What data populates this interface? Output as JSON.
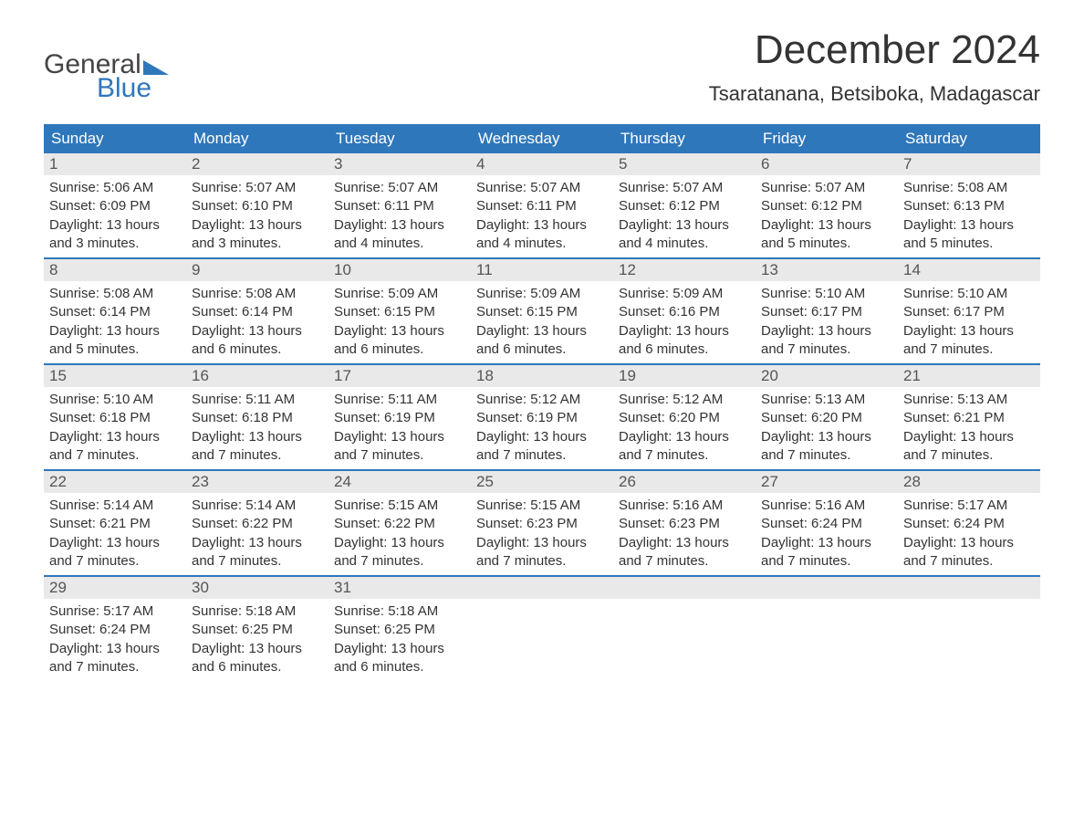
{
  "logo": {
    "top": "General",
    "bottom": "Blue",
    "accent_color": "#2f77bb"
  },
  "title": "December 2024",
  "location": "Tsaratanana, Betsiboka, Madagascar",
  "colors": {
    "header_bg": "#2f77bb",
    "header_text": "#ffffff",
    "strip_bg": "#e9e9e9",
    "text": "#333333",
    "week_divider": "#2f77bb",
    "page_bg": "#ffffff"
  },
  "typography": {
    "title_fontsize": 44,
    "location_fontsize": 22,
    "dayheader_fontsize": 17,
    "daynum_fontsize": 17,
    "body_fontsize": 15
  },
  "day_headers": [
    "Sunday",
    "Monday",
    "Tuesday",
    "Wednesday",
    "Thursday",
    "Friday",
    "Saturday"
  ],
  "weeks": [
    [
      {
        "n": "1",
        "sunrise": "Sunrise: 5:06 AM",
        "sunset": "Sunset: 6:09 PM",
        "day1": "Daylight: 13 hours",
        "day2": "and 3 minutes."
      },
      {
        "n": "2",
        "sunrise": "Sunrise: 5:07 AM",
        "sunset": "Sunset: 6:10 PM",
        "day1": "Daylight: 13 hours",
        "day2": "and 3 minutes."
      },
      {
        "n": "3",
        "sunrise": "Sunrise: 5:07 AM",
        "sunset": "Sunset: 6:11 PM",
        "day1": "Daylight: 13 hours",
        "day2": "and 4 minutes."
      },
      {
        "n": "4",
        "sunrise": "Sunrise: 5:07 AM",
        "sunset": "Sunset: 6:11 PM",
        "day1": "Daylight: 13 hours",
        "day2": "and 4 minutes."
      },
      {
        "n": "5",
        "sunrise": "Sunrise: 5:07 AM",
        "sunset": "Sunset: 6:12 PM",
        "day1": "Daylight: 13 hours",
        "day2": "and 4 minutes."
      },
      {
        "n": "6",
        "sunrise": "Sunrise: 5:07 AM",
        "sunset": "Sunset: 6:12 PM",
        "day1": "Daylight: 13 hours",
        "day2": "and 5 minutes."
      },
      {
        "n": "7",
        "sunrise": "Sunrise: 5:08 AM",
        "sunset": "Sunset: 6:13 PM",
        "day1": "Daylight: 13 hours",
        "day2": "and 5 minutes."
      }
    ],
    [
      {
        "n": "8",
        "sunrise": "Sunrise: 5:08 AM",
        "sunset": "Sunset: 6:14 PM",
        "day1": "Daylight: 13 hours",
        "day2": "and 5 minutes."
      },
      {
        "n": "9",
        "sunrise": "Sunrise: 5:08 AM",
        "sunset": "Sunset: 6:14 PM",
        "day1": "Daylight: 13 hours",
        "day2": "and 6 minutes."
      },
      {
        "n": "10",
        "sunrise": "Sunrise: 5:09 AM",
        "sunset": "Sunset: 6:15 PM",
        "day1": "Daylight: 13 hours",
        "day2": "and 6 minutes."
      },
      {
        "n": "11",
        "sunrise": "Sunrise: 5:09 AM",
        "sunset": "Sunset: 6:15 PM",
        "day1": "Daylight: 13 hours",
        "day2": "and 6 minutes."
      },
      {
        "n": "12",
        "sunrise": "Sunrise: 5:09 AM",
        "sunset": "Sunset: 6:16 PM",
        "day1": "Daylight: 13 hours",
        "day2": "and 6 minutes."
      },
      {
        "n": "13",
        "sunrise": "Sunrise: 5:10 AM",
        "sunset": "Sunset: 6:17 PM",
        "day1": "Daylight: 13 hours",
        "day2": "and 7 minutes."
      },
      {
        "n": "14",
        "sunrise": "Sunrise: 5:10 AM",
        "sunset": "Sunset: 6:17 PM",
        "day1": "Daylight: 13 hours",
        "day2": "and 7 minutes."
      }
    ],
    [
      {
        "n": "15",
        "sunrise": "Sunrise: 5:10 AM",
        "sunset": "Sunset: 6:18 PM",
        "day1": "Daylight: 13 hours",
        "day2": "and 7 minutes."
      },
      {
        "n": "16",
        "sunrise": "Sunrise: 5:11 AM",
        "sunset": "Sunset: 6:18 PM",
        "day1": "Daylight: 13 hours",
        "day2": "and 7 minutes."
      },
      {
        "n": "17",
        "sunrise": "Sunrise: 5:11 AM",
        "sunset": "Sunset: 6:19 PM",
        "day1": "Daylight: 13 hours",
        "day2": "and 7 minutes."
      },
      {
        "n": "18",
        "sunrise": "Sunrise: 5:12 AM",
        "sunset": "Sunset: 6:19 PM",
        "day1": "Daylight: 13 hours",
        "day2": "and 7 minutes."
      },
      {
        "n": "19",
        "sunrise": "Sunrise: 5:12 AM",
        "sunset": "Sunset: 6:20 PM",
        "day1": "Daylight: 13 hours",
        "day2": "and 7 minutes."
      },
      {
        "n": "20",
        "sunrise": "Sunrise: 5:13 AM",
        "sunset": "Sunset: 6:20 PM",
        "day1": "Daylight: 13 hours",
        "day2": "and 7 minutes."
      },
      {
        "n": "21",
        "sunrise": "Sunrise: 5:13 AM",
        "sunset": "Sunset: 6:21 PM",
        "day1": "Daylight: 13 hours",
        "day2": "and 7 minutes."
      }
    ],
    [
      {
        "n": "22",
        "sunrise": "Sunrise: 5:14 AM",
        "sunset": "Sunset: 6:21 PM",
        "day1": "Daylight: 13 hours",
        "day2": "and 7 minutes."
      },
      {
        "n": "23",
        "sunrise": "Sunrise: 5:14 AM",
        "sunset": "Sunset: 6:22 PM",
        "day1": "Daylight: 13 hours",
        "day2": "and 7 minutes."
      },
      {
        "n": "24",
        "sunrise": "Sunrise: 5:15 AM",
        "sunset": "Sunset: 6:22 PM",
        "day1": "Daylight: 13 hours",
        "day2": "and 7 minutes."
      },
      {
        "n": "25",
        "sunrise": "Sunrise: 5:15 AM",
        "sunset": "Sunset: 6:23 PM",
        "day1": "Daylight: 13 hours",
        "day2": "and 7 minutes."
      },
      {
        "n": "26",
        "sunrise": "Sunrise: 5:16 AM",
        "sunset": "Sunset: 6:23 PM",
        "day1": "Daylight: 13 hours",
        "day2": "and 7 minutes."
      },
      {
        "n": "27",
        "sunrise": "Sunrise: 5:16 AM",
        "sunset": "Sunset: 6:24 PM",
        "day1": "Daylight: 13 hours",
        "day2": "and 7 minutes."
      },
      {
        "n": "28",
        "sunrise": "Sunrise: 5:17 AM",
        "sunset": "Sunset: 6:24 PM",
        "day1": "Daylight: 13 hours",
        "day2": "and 7 minutes."
      }
    ],
    [
      {
        "n": "29",
        "sunrise": "Sunrise: 5:17 AM",
        "sunset": "Sunset: 6:24 PM",
        "day1": "Daylight: 13 hours",
        "day2": "and 7 minutes."
      },
      {
        "n": "30",
        "sunrise": "Sunrise: 5:18 AM",
        "sunset": "Sunset: 6:25 PM",
        "day1": "Daylight: 13 hours",
        "day2": "and 6 minutes."
      },
      {
        "n": "31",
        "sunrise": "Sunrise: 5:18 AM",
        "sunset": "Sunset: 6:25 PM",
        "day1": "Daylight: 13 hours",
        "day2": "and 6 minutes."
      },
      {
        "n": "",
        "sunrise": "",
        "sunset": "",
        "day1": "",
        "day2": ""
      },
      {
        "n": "",
        "sunrise": "",
        "sunset": "",
        "day1": "",
        "day2": ""
      },
      {
        "n": "",
        "sunrise": "",
        "sunset": "",
        "day1": "",
        "day2": ""
      },
      {
        "n": "",
        "sunrise": "",
        "sunset": "",
        "day1": "",
        "day2": ""
      }
    ]
  ]
}
